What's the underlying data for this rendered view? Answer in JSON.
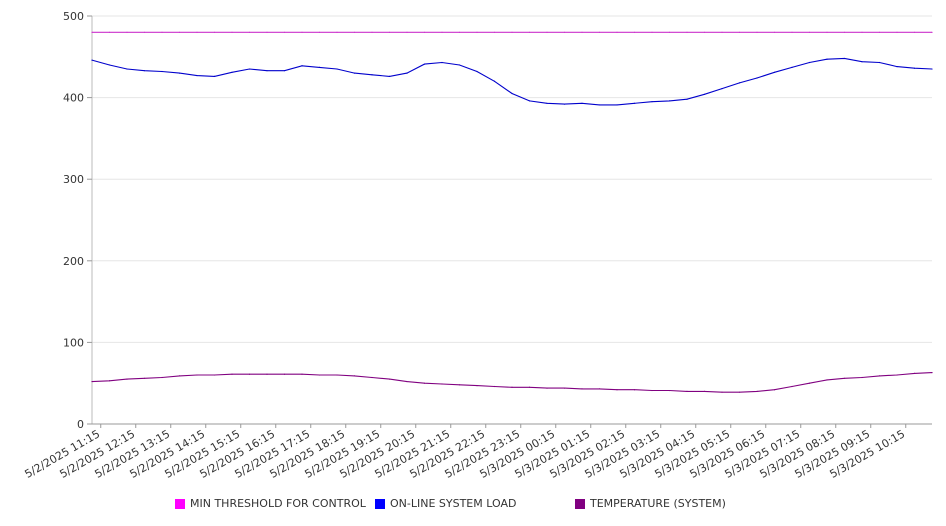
{
  "chart_data": {
    "type": "line",
    "title": "",
    "xlabel": "",
    "ylabel": "",
    "ylim": [
      0,
      500
    ],
    "y_ticks": [
      "0",
      "100",
      "200",
      "300",
      "400",
      "500"
    ],
    "x_tick_labels": [
      "5/2/2025 11:15",
      "5/2/2025 12:15",
      "5/2/2025 13:15",
      "5/2/2025 14:15",
      "5/2/2025 15:15",
      "5/2/2025 16:15",
      "5/2/2025 17:15",
      "5/2/2025 18:15",
      "5/2/2025 19:15",
      "5/2/2025 20:15",
      "5/2/2025 21:15",
      "5/2/2025 22:15",
      "5/2/2025 23:15",
      "5/3/2025 00:15",
      "5/3/2025 01:15",
      "5/3/2025 02:15",
      "5/3/2025 03:15",
      "5/3/2025 04:15",
      "5/3/2025 05:15",
      "5/3/2025 06:15",
      "5/3/2025 07:15",
      "5/3/2025 08:15",
      "5/3/2025 09:15",
      "5/3/2025 10:15"
    ],
    "x": [
      "5/2/2025 11:00",
      "5/2/2025 11:30",
      "5/2/2025 12:00",
      "5/2/2025 12:30",
      "5/2/2025 13:00",
      "5/2/2025 13:30",
      "5/2/2025 14:00",
      "5/2/2025 14:30",
      "5/2/2025 15:00",
      "5/2/2025 15:30",
      "5/2/2025 16:00",
      "5/2/2025 16:30",
      "5/2/2025 17:00",
      "5/2/2025 17:30",
      "5/2/2025 18:00",
      "5/2/2025 18:30",
      "5/2/2025 19:00",
      "5/2/2025 19:30",
      "5/2/2025 20:00",
      "5/2/2025 20:30",
      "5/2/2025 21:00",
      "5/2/2025 21:30",
      "5/2/2025 22:00",
      "5/2/2025 22:30",
      "5/2/2025 23:00",
      "5/2/2025 23:30",
      "5/3/2025 00:00",
      "5/3/2025 00:30",
      "5/3/2025 01:00",
      "5/3/2025 01:30",
      "5/3/2025 02:00",
      "5/3/2025 02:30",
      "5/3/2025 03:00",
      "5/3/2025 03:30",
      "5/3/2025 04:00",
      "5/3/2025 04:30",
      "5/3/2025 05:00",
      "5/3/2025 05:30",
      "5/3/2025 06:00",
      "5/3/2025 06:30",
      "5/3/2025 07:00",
      "5/3/2025 07:30",
      "5/3/2025 08:00",
      "5/3/2025 08:30",
      "5/3/2025 09:00",
      "5/3/2025 09:30",
      "5/3/2025 10:00",
      "5/3/2025 10:30",
      "5/3/2025 11:00"
    ],
    "series": [
      {
        "name": "MIN THRESHOLD FOR CONTROL",
        "color": "#cc33cc",
        "values": [
          480,
          480,
          480,
          480,
          480,
          480,
          480,
          480,
          480,
          480,
          480,
          480,
          480,
          480,
          480,
          480,
          480,
          480,
          480,
          480,
          480,
          480,
          480,
          480,
          480,
          480,
          480,
          480,
          480,
          480,
          480,
          480,
          480,
          480,
          480,
          480,
          480,
          480,
          480,
          480,
          480,
          480,
          480,
          480,
          480,
          480,
          480,
          480,
          480
        ]
      },
      {
        "name": "ON-LINE SYSTEM LOAD",
        "color": "#0000cc",
        "values": [
          446,
          440,
          435,
          433,
          432,
          430,
          427,
          426,
          431,
          435,
          433,
          433,
          439,
          437,
          435,
          430,
          428,
          426,
          430,
          441,
          443,
          440,
          432,
          420,
          405,
          396,
          393,
          392,
          393,
          391,
          391,
          393,
          395,
          396,
          398,
          404,
          411,
          418,
          424,
          431,
          437,
          443,
          447,
          448,
          444,
          443,
          438,
          436,
          435
        ]
      },
      {
        "name": "TEMPERATURE (SYSTEM)",
        "color": "#800080",
        "values": [
          52,
          53,
          55,
          56,
          57,
          59,
          60,
          60,
          61,
          61,
          61,
          61,
          61,
          60,
          60,
          59,
          57,
          55,
          52,
          50,
          49,
          48,
          47,
          46,
          45,
          45,
          44,
          44,
          43,
          43,
          42,
          42,
          41,
          41,
          40,
          40,
          39,
          39,
          40,
          42,
          46,
          50,
          54,
          56,
          57,
          59,
          60,
          62,
          63
        ]
      }
    ],
    "legend_position": "bottom",
    "grid": true
  },
  "legend": {
    "items": [
      {
        "label": "MIN THRESHOLD FOR CONTROL",
        "color": "#ff00ff"
      },
      {
        "label": "ON-LINE SYSTEM LOAD",
        "color": "#0000ff"
      },
      {
        "label": "TEMPERATURE (SYSTEM)",
        "color": "#800080"
      }
    ]
  }
}
